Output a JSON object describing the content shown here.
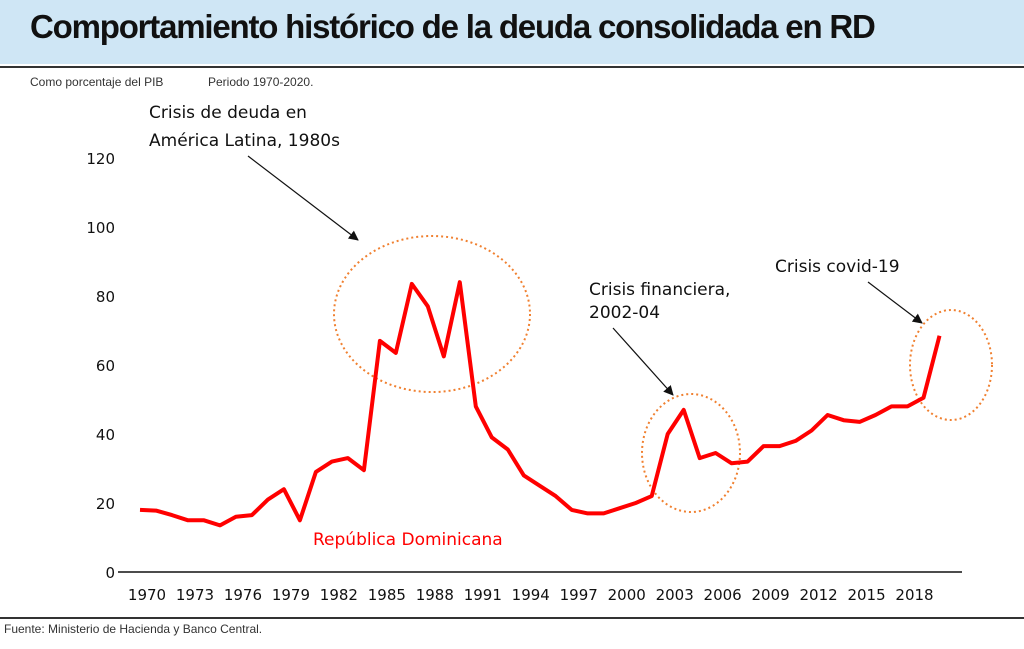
{
  "header": {
    "title": "Comportamiento histórico de la deuda consolidada en RD",
    "subtitle_left": "Como porcentaje del PIB",
    "subtitle_right": "Periodo 1970-2020.",
    "source": "Fuente: Ministerio de Hacienda y Banco Central."
  },
  "colors": {
    "title_band": "#cfe6f5",
    "series": "#ff0000",
    "highlight": "#f08030"
  },
  "chart_data": {
    "type": "line",
    "title": "Comportamiento histórico de la deuda consolidada en RD",
    "subtitle": "Como porcentaje del PIB",
    "xlabel": "",
    "ylabel": "",
    "ylim": [
      0,
      120
    ],
    "xlim": [
      1970,
      2021
    ],
    "grid": false,
    "x_ticks": [
      1970,
      1973,
      1976,
      1979,
      1982,
      1985,
      1988,
      1991,
      1994,
      1997,
      2000,
      2003,
      2006,
      2009,
      2012,
      2015,
      2018
    ],
    "y_ticks": [
      0,
      20,
      40,
      60,
      80,
      100,
      120
    ],
    "series": [
      {
        "name": "República Dominicana",
        "x": [
          1970,
          1971,
          1972,
          1973,
          1974,
          1975,
          1976,
          1977,
          1978,
          1979,
          1980,
          1981,
          1982,
          1983,
          1984,
          1985,
          1986,
          1987,
          1988,
          1989,
          1990,
          1991,
          1992,
          1993,
          1994,
          1995,
          1996,
          1997,
          1998,
          1999,
          2000,
          2001,
          2002,
          2003,
          2004,
          2005,
          2006,
          2007,
          2008,
          2009,
          2010,
          2011,
          2012,
          2013,
          2014,
          2015,
          2016,
          2017,
          2018,
          2019,
          2020
        ],
        "values": [
          18,
          17.8,
          16.5,
          15,
          15,
          13.5,
          16,
          16.5,
          21,
          24,
          15,
          29,
          32,
          33,
          29.5,
          67,
          63.5,
          83.5,
          77,
          62.5,
          84,
          48,
          39,
          35.5,
          28,
          25,
          22,
          18,
          17,
          17,
          18.5,
          20,
          22,
          40,
          47,
          33,
          34.5,
          31.5,
          32,
          36.5,
          36.5,
          38,
          41,
          45.5,
          44,
          43.5,
          45.5,
          48,
          48,
          50.5,
          68.5
        ]
      }
    ],
    "annotations": [
      {
        "text_lines": [
          "Crisis de deuda en",
          "América Latina, 1980s"
        ],
        "target_x": 1988,
        "target_y": 77
      },
      {
        "text_lines": [
          "Crisis financiera,",
          "2002-04"
        ],
        "target_x": 2004,
        "target_y": 40
      },
      {
        "text_lines": [
          "Crisis covid-19"
        ],
        "target_x": 2020,
        "target_y": 62
      }
    ]
  }
}
